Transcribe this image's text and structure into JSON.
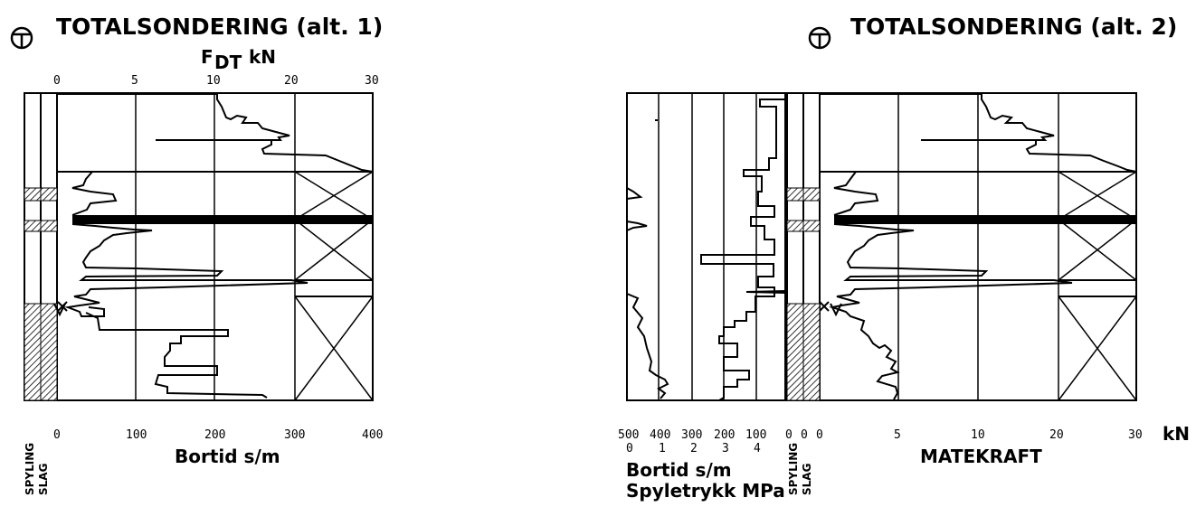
{
  "left": {
    "title": "TOTALSONDERING (alt. 1)",
    "force_label_f": "F",
    "force_label_dt": "DT",
    "force_label_unit": "kN",
    "top_ticks": [
      "0",
      "5",
      "10",
      "20",
      "30"
    ],
    "bottom_ticks": [
      "0",
      "100",
      "200",
      "300",
      "400"
    ],
    "bottom_label": "Bortid s/m",
    "side_label_1": "SPYLING",
    "side_label_2": "SLAG"
  },
  "right": {
    "title": "TOTALSONDERING (alt. 2)",
    "bortid_ticks": [
      "500",
      "400",
      "300",
      "200",
      "100"
    ],
    "mpa_ticks": [
      "0",
      "1",
      "2",
      "3",
      "4"
    ],
    "bortid_label": "Bortid s/m",
    "mpa_label": "Spyletrykk MPa",
    "side_ticks": [
      "0",
      "0"
    ],
    "side_label_1": "SPYLING",
    "side_label_2": "SLAG",
    "force_ticks": [
      "0",
      "5",
      "10",
      "20",
      "30"
    ],
    "force_unit": "kN",
    "force_label": "MATEKRAFT"
  },
  "icons": [
    "drill-symbol-icon"
  ]
}
